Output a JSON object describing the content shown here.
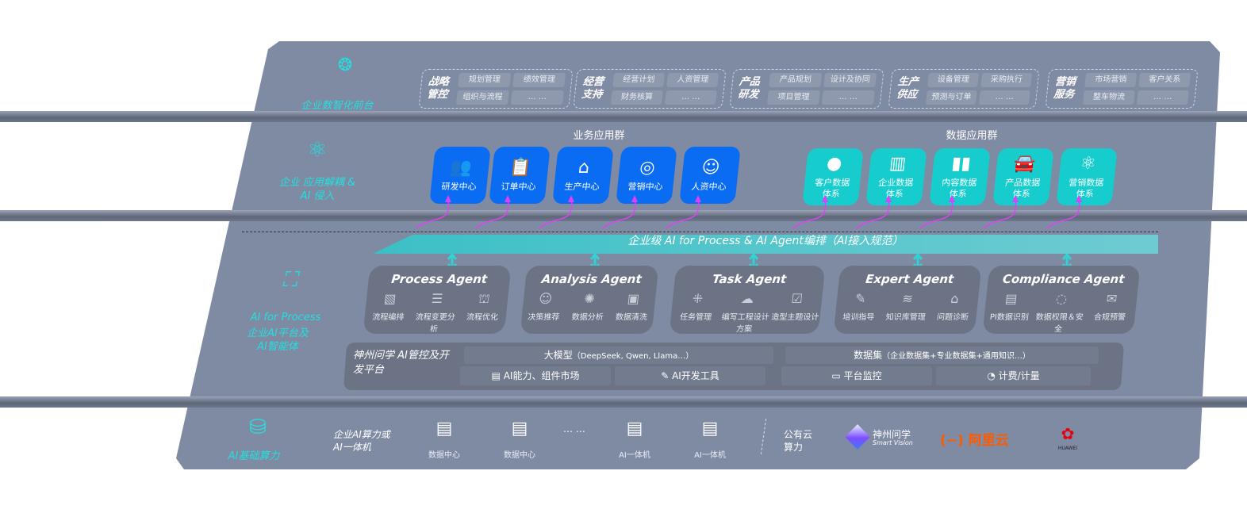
{
  "front": {
    "label": "企业数智化前台",
    "icon": "brain-icon",
    "groups": [
      {
        "title": "战略管控",
        "items": [
          "规划管理",
          "绩效管理",
          "组织与流程",
          "… …"
        ]
      },
      {
        "title": "经营支持",
        "items": [
          "经营计划",
          "人资管理",
          "财务核算",
          "… …"
        ]
      },
      {
        "title": "产品研发",
        "items": [
          "产品规划",
          "设计及协同",
          "项目管理",
          "… …"
        ]
      },
      {
        "title": "生产供应",
        "items": [
          "设备管理",
          "采购执行",
          "预测与订单",
          "… …"
        ]
      },
      {
        "title": "营销服务",
        "items": [
          "市场营销",
          "客户关系",
          "整车物流",
          "… …"
        ]
      }
    ]
  },
  "apps": {
    "label": "企业 应用解耦 & AI 侵入",
    "icon": "molecule-icon",
    "business_title": "业务应用群",
    "data_title": "数据应用群",
    "business": [
      {
        "label": "研发中心",
        "icon": "team-icon"
      },
      {
        "label": "订单中心",
        "icon": "clipboard-icon"
      },
      {
        "label": "生产中心",
        "icon": "factory-icon"
      },
      {
        "label": "营销中心",
        "icon": "target-icon"
      },
      {
        "label": "人资中心",
        "icon": "person-icon"
      }
    ],
    "data": [
      {
        "label": "客户数据体系",
        "icon": "user-icon"
      },
      {
        "label": "企业数据体系",
        "icon": "building-icon"
      },
      {
        "label": "内容数据体系",
        "icon": "books-icon"
      },
      {
        "label": "产品数据体系",
        "icon": "car-icon"
      },
      {
        "label": "营销数据体系",
        "icon": "atom-icon"
      }
    ],
    "accent_blue": "#0a6cf2",
    "accent_teal": "#17cccc",
    "arrow_color": "#e040fb"
  },
  "ai": {
    "label_en": "AI for Process",
    "label_cn": "企业AI平台及AI智能体",
    "icon": "face-scan-icon",
    "banner": "企业级 AI for Process & AI Agent编排（AI接入规范）",
    "agents": [
      {
        "title": "Process Agent",
        "items": [
          "流程编排",
          "流程变更分析",
          "流程优化"
        ]
      },
      {
        "title": "Analysis Agent",
        "items": [
          "决策推荐",
          "数据分析",
          "数据清洗"
        ]
      },
      {
        "title": "Task Agent",
        "items": [
          "任务管理",
          "编写工程设计方案",
          "造型主题设计"
        ]
      },
      {
        "title": "Expert Agent",
        "items": [
          "培训指导",
          "知识库管理",
          "问题诊断"
        ]
      },
      {
        "title": "Compliance Agent",
        "items": [
          "PI数据识别",
          "数据权限＆安全",
          "合规预警"
        ]
      }
    ],
    "platform": {
      "title": "神州问学 AI管控及开发平台",
      "model": "大模型",
      "model_note": "（DeepSeek, Qwen, Llama…）",
      "dataset": "数据集",
      "dataset_note": "（企业数据集+专业数据集+通用知识…）",
      "tools": [
        "AI能力、组件市场",
        "AI开发工具",
        "平台监控",
        "计费/计量"
      ]
    }
  },
  "infra": {
    "label": "AI基础算力",
    "icon": "database-icon",
    "enterprise": "企业AI算力或AI一体机",
    "servers": [
      "数据中心",
      "数据中心",
      "AI一体机",
      "AI一体机"
    ],
    "ellipsis": "… …",
    "public": "公有云算力",
    "logos": {
      "smartvision": "神州问学",
      "smartvision_en": "Smart Vision",
      "aliyun": "阿里云",
      "huawei": "HUAWEI"
    }
  }
}
